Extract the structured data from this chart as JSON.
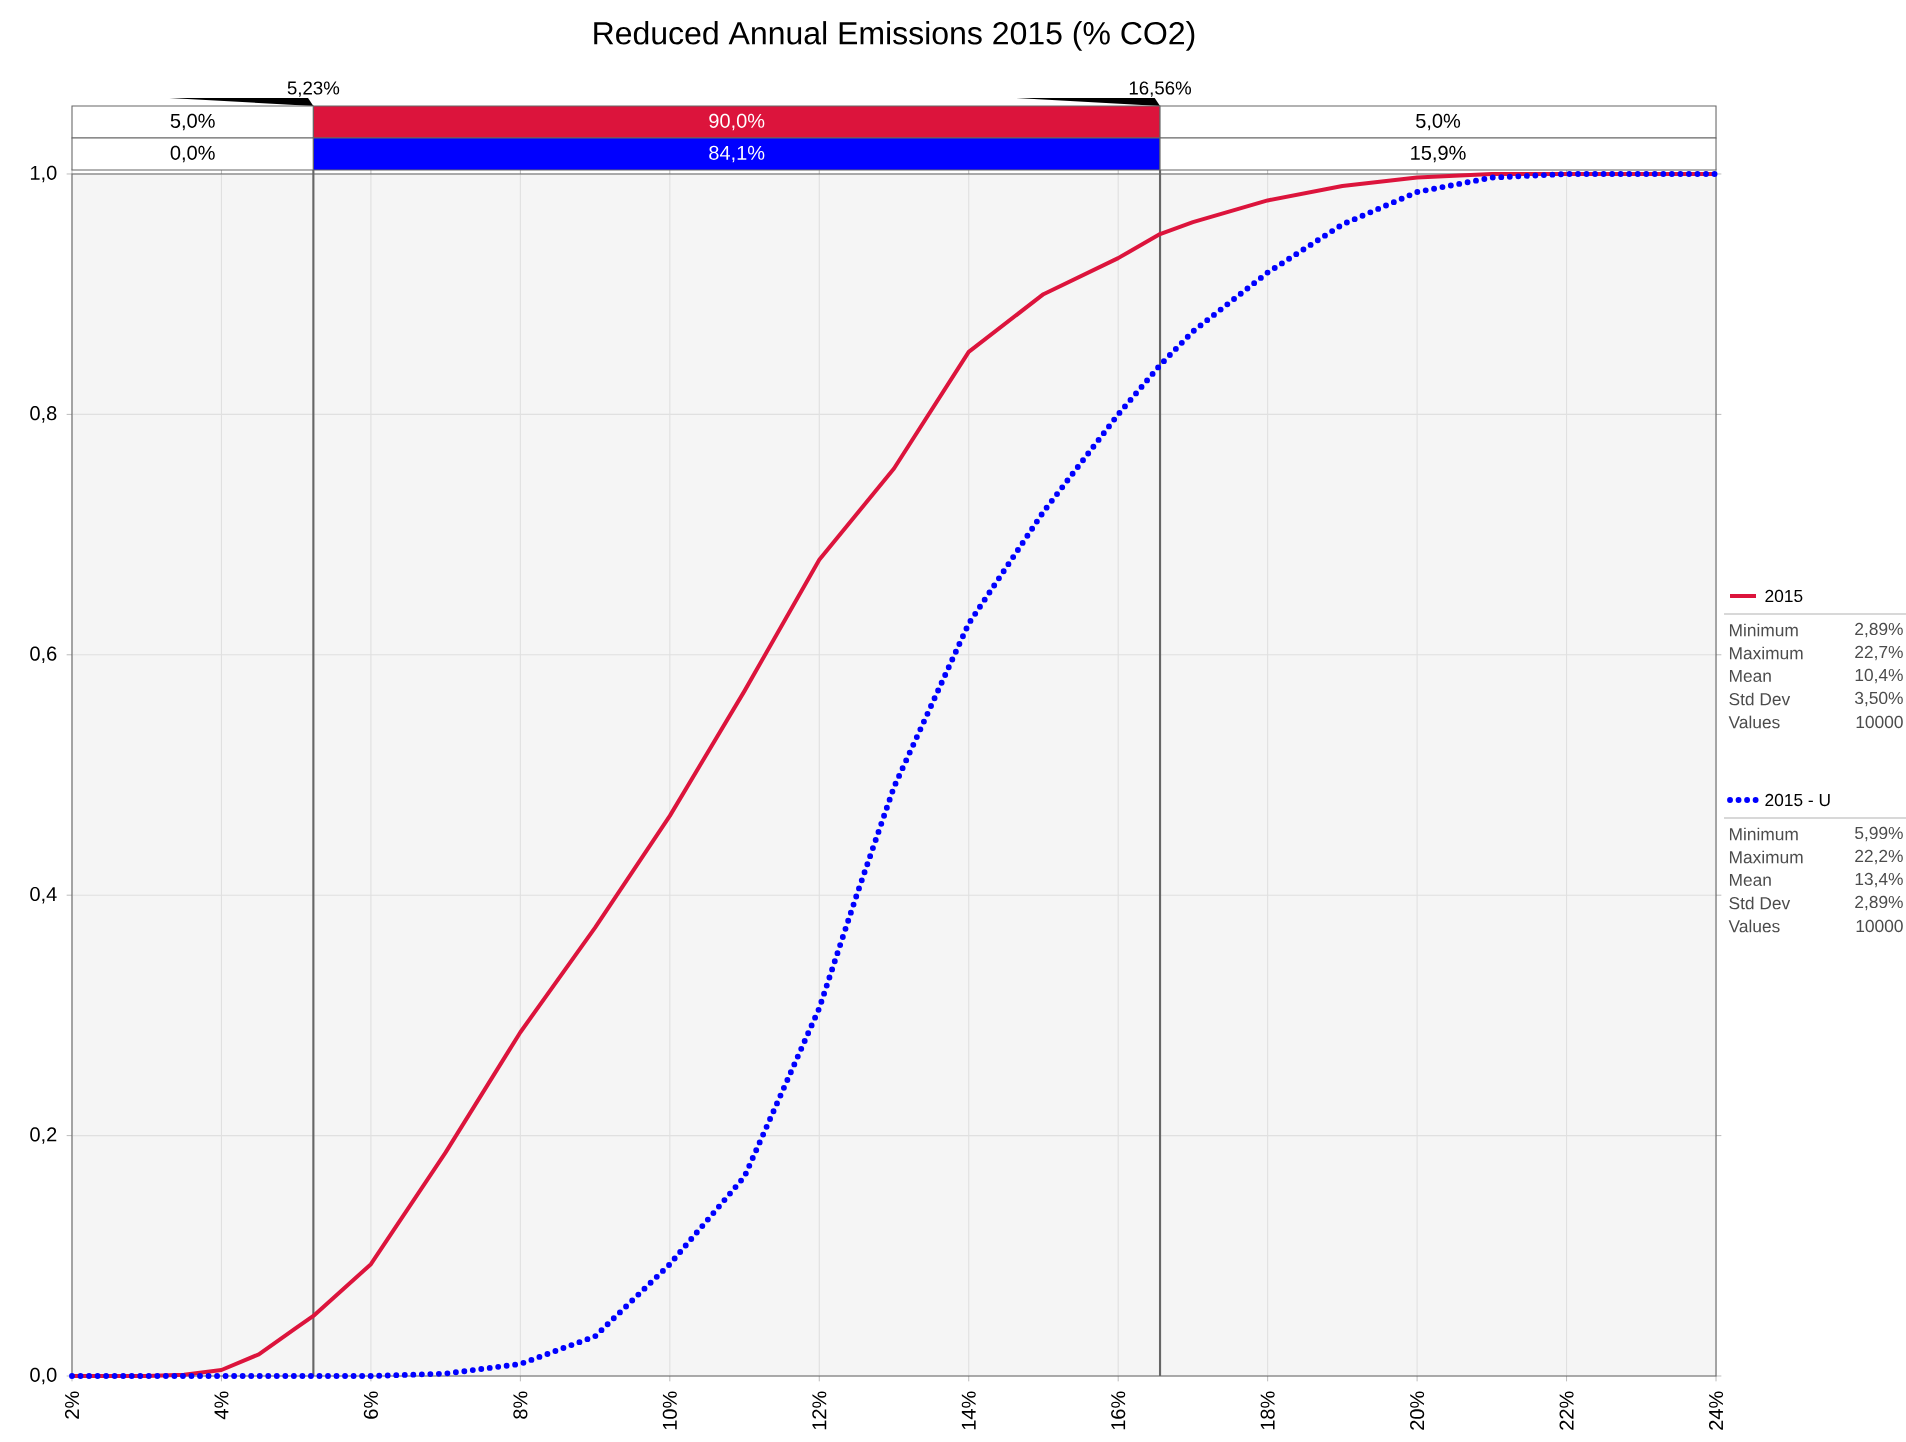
{
  "chart_data": {
    "type": "line",
    "title": "Reduced Annual Emissions 2015 (% CO2)",
    "x": [
      2,
      3,
      3.5,
      4,
      4.5,
      5,
      5.23,
      6,
      7,
      8,
      9,
      10,
      11,
      12,
      13,
      14,
      15,
      16,
      16.56,
      17,
      18,
      19,
      20,
      21,
      22,
      24
    ],
    "series": [
      {
        "name": "2015",
        "color": "#dc143c",
        "line_style": "solid",
        "values": [
          0,
          0,
          0.001,
          0.005,
          0.018,
          0.04,
          0.05,
          0.093,
          0.186,
          0.286,
          0.373,
          0.466,
          0.57,
          0.679,
          0.755,
          0.852,
          0.9,
          0.93,
          0.95,
          0.96,
          0.978,
          0.99,
          0.997,
          1,
          1,
          1
        ]
      },
      {
        "name": "2015 - U",
        "color": "#0000ff",
        "line_style": "dotted",
        "x": [
          2,
          6,
          7,
          8,
          9,
          10,
          11,
          12,
          12.5,
          13,
          14,
          15,
          16,
          16.56,
          17,
          18,
          19,
          20,
          21,
          22,
          24
        ],
        "values": [
          0,
          0,
          0.002,
          0.01,
          0.033,
          0.093,
          0.166,
          0.306,
          0.4,
          0.49,
          0.626,
          0.719,
          0.8,
          0.841,
          0.869,
          0.918,
          0.958,
          0.985,
          0.997,
          1,
          1
        ]
      }
    ],
    "xlim": [
      2,
      24
    ],
    "xticks": [
      {
        "value": 2,
        "label": "2%"
      },
      {
        "value": 4,
        "label": "4%"
      },
      {
        "value": 6,
        "label": "6%"
      },
      {
        "value": 8,
        "label": "8%"
      },
      {
        "value": 10,
        "label": "10%"
      },
      {
        "value": 12,
        "label": "12%"
      },
      {
        "value": 14,
        "label": "14%"
      },
      {
        "value": 16,
        "label": "16%"
      },
      {
        "value": 18,
        "label": "18%"
      },
      {
        "value": 20,
        "label": "20%"
      },
      {
        "value": 22,
        "label": "22%"
      },
      {
        "value": 24,
        "label": "24%"
      }
    ],
    "ylim": [
      0,
      1
    ],
    "yticks": [
      {
        "value": 0,
        "label": "0,0"
      },
      {
        "value": 0.2,
        "label": "0,2"
      },
      {
        "value": 0.4,
        "label": "0,4"
      },
      {
        "value": 0.6,
        "label": "0,6"
      },
      {
        "value": 0.8,
        "label": "0,8"
      },
      {
        "value": 1,
        "label": "1,0"
      }
    ],
    "grid": true,
    "legend": "right",
    "marker": "none",
    "ref_lines": [
      {
        "axis": "x",
        "value": 5.23,
        "label": "5,23%"
      },
      {
        "axis": "x",
        "value": 16.56,
        "label": "16,56%"
      }
    ],
    "annotations": [
      "5,0%",
      "90,0%",
      "5,0%",
      "0,0%",
      "84,1%",
      "15,9%",
      "Minimum",
      "2,89%",
      "Maximum",
      "22,7%",
      "Mean",
      "10,4%",
      "Std Dev",
      "3,50%",
      "Values",
      "10000",
      "Minimum",
      "5,99%",
      "Maximum",
      "22,2%",
      "Mean",
      "13,4%",
      "Std Dev",
      "2,89%",
      "Values",
      "10000"
    ]
  }
}
